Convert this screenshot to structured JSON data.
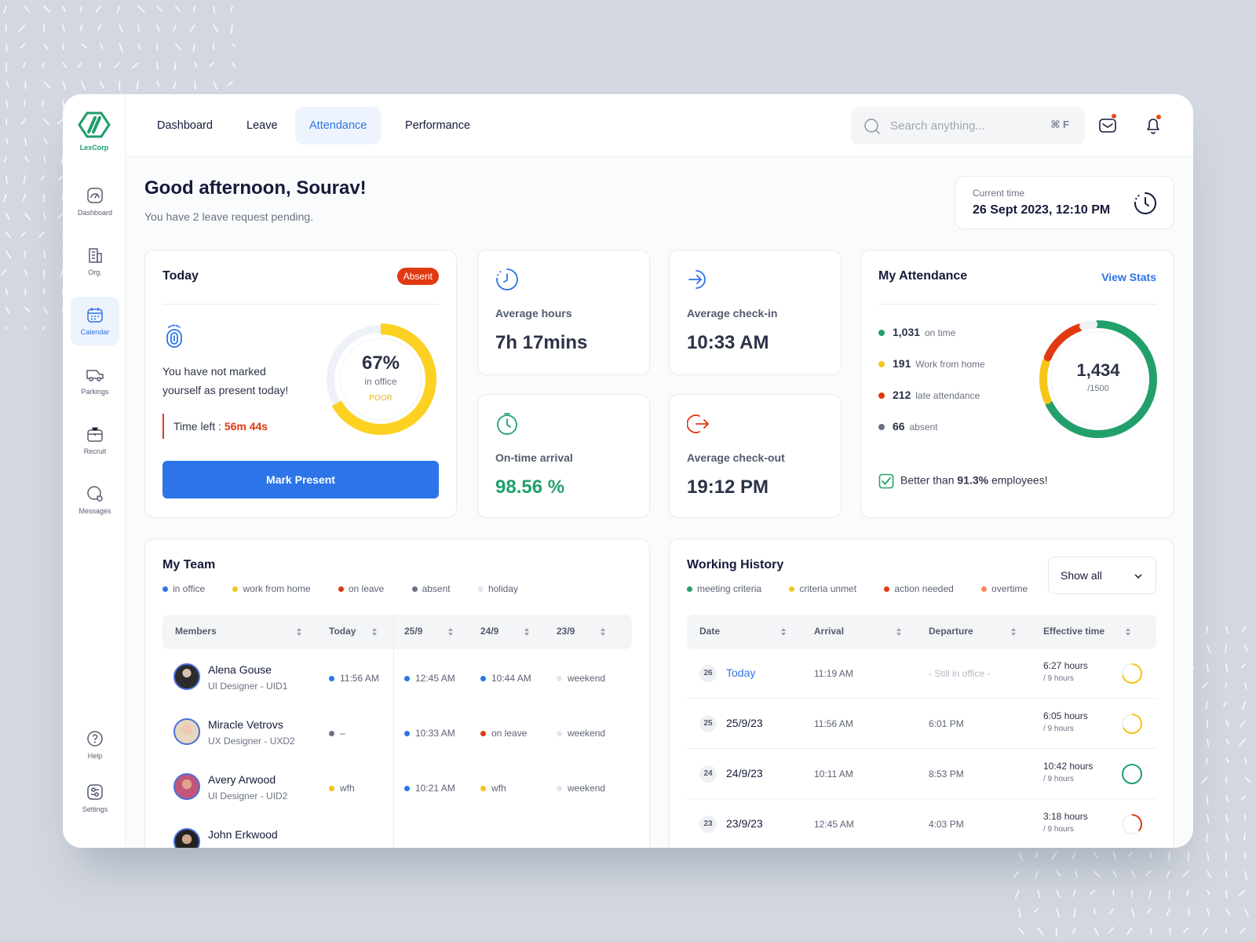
{
  "brand": {
    "name": "LexCorp"
  },
  "sidebar": {
    "items": [
      {
        "label": "Dashboard",
        "icon": "speedometer-icon"
      },
      {
        "label": "Org.",
        "icon": "building-icon"
      },
      {
        "label": "Calendar",
        "icon": "calendar-icon"
      },
      {
        "label": "Parkings",
        "icon": "car-icon"
      },
      {
        "label": "Recruit",
        "icon": "briefcase-icon"
      },
      {
        "label": "Messages",
        "icon": "chat-icon"
      }
    ],
    "bottom": [
      {
        "label": "Help",
        "icon": "help-icon"
      },
      {
        "label": "Settings",
        "icon": "settings-icon"
      }
    ],
    "active_index": 2
  },
  "topbar": {
    "tabs": [
      {
        "label": "Dashboard"
      },
      {
        "label": "Leave"
      },
      {
        "label": "Attendance"
      },
      {
        "label": "Performance"
      }
    ],
    "active_tab": "Attendance",
    "search_placeholder": "Search anything...",
    "search_shortcut": "⌘ F"
  },
  "greeting": {
    "title": "Good afternoon, Sourav!",
    "subtitle": "You have 2 leave request pending."
  },
  "current_time": {
    "label": "Current time",
    "value": "26 Sept 2023, 12:10 PM"
  },
  "today": {
    "title": "Today",
    "status": "Absent",
    "message": "You have not marked yourself as present today!",
    "time_left_label": "Time left :",
    "time_left_value": "56m 44s",
    "button": "Mark Present",
    "ring_value": "67%",
    "ring_fraction": 0.67,
    "ring_label": "in office",
    "ring_rating": "POOR"
  },
  "stats": [
    {
      "label": "Average hours",
      "value": "7h 17mins",
      "icon": "clock-icon"
    },
    {
      "label": "Average check-in",
      "value": "10:33 AM",
      "icon": "check-in-icon"
    },
    {
      "label": "On-time arrival",
      "value": "98.56 %",
      "icon": "alarm-icon"
    },
    {
      "label": "Average check-out",
      "value": "19:12 PM",
      "icon": "check-out-icon"
    }
  ],
  "attendance": {
    "title": "My Attendance",
    "link": "View Stats",
    "total": "1,434",
    "capacity": "/1500",
    "rows": [
      {
        "count": "1,031",
        "label": "on time",
        "color": "#22a06b",
        "value": 1031
      },
      {
        "count": "191",
        "label": "Work from home",
        "color": "#f5c518",
        "value": 191
      },
      {
        "count": "212",
        "label": "late attendance",
        "color": "#e03a12",
        "value": 212
      },
      {
        "count": "66",
        "label": "absent",
        "color": "#6b7283",
        "value": 66
      }
    ],
    "better_prefix": "Better than",
    "better_value": "91.3%",
    "better_suffix": "employees!"
  },
  "team": {
    "title": "My Team",
    "legend": [
      {
        "label": "in office",
        "color": "#2d74e8"
      },
      {
        "label": "work from home",
        "color": "#f5c518"
      },
      {
        "label": "on leave",
        "color": "#e03a12"
      },
      {
        "label": "absent",
        "color": "#6b7283"
      },
      {
        "label": "holiday",
        "color": "#e3e6ea"
      }
    ],
    "columns": [
      "Members",
      "Today",
      "25/9",
      "24/9",
      "23/9"
    ],
    "members": [
      {
        "name": "Alena Gouse",
        "role": "UI Designer - UID1",
        "today": {
          "text": "11:56 AM",
          "color": "#2d74e8"
        },
        "d25": {
          "text": "12:45 AM",
          "color": "#2d74e8"
        },
        "d24": {
          "text": "10:44 AM",
          "color": "#2d74e8"
        },
        "d23": {
          "text": "weekend",
          "color": "#e3e6ea"
        }
      },
      {
        "name": "Miracle Vetrovs",
        "role": "UX Designer - UXD2",
        "today": {
          "text": "–",
          "color": "#6b7283"
        },
        "d25": {
          "text": "10:33 AM",
          "color": "#2d74e8"
        },
        "d24": {
          "text": "on leave",
          "color": "#e03a12"
        },
        "d23": {
          "text": "weekend",
          "color": "#e3e6ea"
        }
      },
      {
        "name": "Avery Arwood",
        "role": "UI Designer - UID2",
        "today": {
          "text": "wfh",
          "color": "#f5c518"
        },
        "d25": {
          "text": "10:21 AM",
          "color": "#2d74e8"
        },
        "d24": {
          "text": "wfh",
          "color": "#f5c518"
        },
        "d23": {
          "text": "weekend",
          "color": "#e3e6ea"
        }
      },
      {
        "name": "John Erkwood",
        "role": "",
        "today": {
          "text": "",
          "color": ""
        },
        "d25": {
          "text": "",
          "color": ""
        },
        "d24": {
          "text": "",
          "color": ""
        },
        "d23": {
          "text": "",
          "color": ""
        }
      }
    ]
  },
  "history": {
    "title": "Working History",
    "filter": "Show all",
    "legend": [
      {
        "label": "meeting criteria",
        "color": "#22a06b"
      },
      {
        "label": "criteria unmet",
        "color": "#f5c518"
      },
      {
        "label": "action needed",
        "color": "#e03a12"
      },
      {
        "label": "overtime",
        "color": "#f58a5a"
      }
    ],
    "columns": [
      "Date",
      "Arrival",
      "Departure",
      "Effective time"
    ],
    "rows": [
      {
        "day": "26",
        "date": "Today",
        "arrival": "11:19 AM",
        "departure": "- Still in office -",
        "effective": "6:27 hours",
        "target": "/ 9 hours",
        "fraction": 0.72,
        "color": "#f5c518"
      },
      {
        "day": "25",
        "date": "25/9/23",
        "arrival": "11:56 AM",
        "departure": "6:01 PM",
        "effective": "6:05 hours",
        "target": "/ 9 hours",
        "fraction": 0.68,
        "color": "#f5c518"
      },
      {
        "day": "24",
        "date": "24/9/23",
        "arrival": "10:11 AM",
        "departure": "8:53 PM",
        "effective": "10:42 hours",
        "target": "/ 9 hours",
        "fraction": 1.0,
        "color": "#22a06b"
      },
      {
        "day": "23",
        "date": "23/9/23",
        "arrival": "12:45 AM",
        "departure": "4:03 PM",
        "effective": "3:18 hours",
        "target": "/ 9 hours",
        "fraction": 0.37,
        "color": "#e03a12"
      }
    ]
  }
}
